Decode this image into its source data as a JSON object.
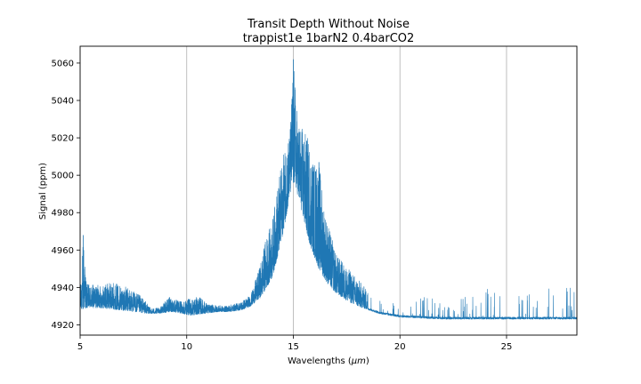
{
  "chart_data": {
    "type": "line",
    "title_line1": "Transit Depth Without Noise",
    "title_line2": "trappist1e 1barN2 0.4barCO2",
    "xlabel_prefix": "Wavelengths (",
    "xlabel_mu": "μm",
    "xlabel_suffix": ")",
    "ylabel": "Signal (ppm)",
    "xlim": [
      5,
      28.3
    ],
    "ylim": [
      4914.5,
      5069
    ],
    "xticks": [
      5,
      10,
      15,
      20,
      25
    ],
    "xtick_labels": [
      "5",
      "10",
      "15",
      "20",
      "25"
    ],
    "yticks": [
      4920,
      4940,
      4960,
      4980,
      5000,
      5020,
      5040,
      5060
    ],
    "ytick_labels": [
      "4920",
      "4940",
      "4960",
      "4980",
      "5000",
      "5020",
      "5040",
      "5060"
    ],
    "grid": "vertical lines at x ticks",
    "line_color": "#1f77b4",
    "baseline_x": [
      5.0,
      5.3,
      6.0,
      6.8,
      7.5,
      8.2,
      8.6,
      9.3,
      9.8,
      10.2,
      10.8,
      11.5,
      12.0,
      12.6,
      13.0,
      13.5,
      14.0,
      14.4,
      14.7,
      14.9,
      15.0,
      15.1,
      15.3,
      15.5,
      15.8,
      16.2,
      16.6,
      17.0,
      17.5,
      18.0,
      18.5,
      19.0,
      19.5,
      20.0,
      21.0,
      22.0,
      23.0,
      24.0,
      25.0,
      26.0,
      27.0,
      28.3
    ],
    "baseline_y": [
      4928,
      4929,
      4929,
      4928,
      4927,
      4926,
      4926,
      4927,
      4926,
      4925,
      4926,
      4927,
      4927,
      4928,
      4930,
      4935,
      4945,
      4962,
      4980,
      4993,
      4996,
      4994,
      4985,
      4975,
      4962,
      4950,
      4942,
      4937,
      4933,
      4930,
      4928,
      4926,
      4925,
      4924,
      4923.5,
      4923,
      4923,
      4923,
      4923,
      4923,
      4923,
      4923
    ],
    "envelope_x": [
      5.0,
      5.15,
      5.3,
      6.0,
      6.5,
      7.0,
      7.4,
      7.9,
      8.3,
      8.7,
      9.2,
      9.6,
      10.2,
      10.6,
      11.0,
      11.8,
      12.5,
      13.0,
      13.4,
      13.7,
      14.0,
      14.3,
      14.6,
      14.85,
      15.0,
      15.2,
      15.45,
      15.7,
      16.0,
      16.2,
      16.5,
      17.0,
      17.5,
      18.0,
      18.5,
      19.0,
      19.5,
      20.0,
      21.0,
      22.0,
      23.0,
      24.0,
      25.0,
      26.0,
      27.0,
      28.3
    ],
    "envelope_y": [
      4935,
      4968,
      4942,
      4941,
      4943,
      4941,
      4939,
      4935,
      4929,
      4929,
      4935,
      4933,
      4934,
      4935,
      4931,
      4930,
      4932,
      4936,
      4950,
      4966,
      4975,
      4997,
      5015,
      5025,
      5062,
      5030,
      5025,
      5020,
      5007,
      5008,
      4980,
      4958,
      4951,
      4945,
      4938,
      4934,
      4932,
      4931,
      4935,
      4931,
      4934,
      4940,
      4938,
      4937,
      4940,
      4939
    ]
  }
}
